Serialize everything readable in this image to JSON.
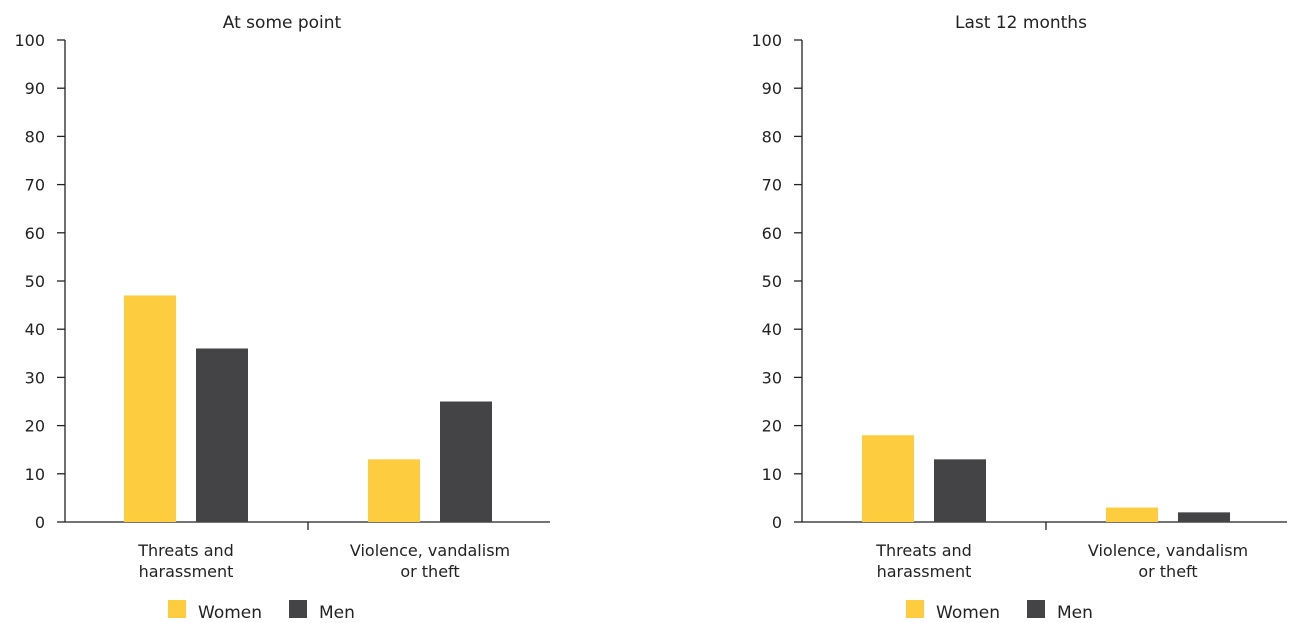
{
  "colors": {
    "women": "#fdcd3f",
    "men": "#444446",
    "axis": "#222222"
  },
  "chart_data": [
    {
      "type": "bar",
      "title": "At some point",
      "categories": [
        [
          "Threats and",
          "harassment"
        ],
        [
          "Violence, vandalism",
          "or theft"
        ]
      ],
      "series": [
        {
          "name": "Women",
          "values": [
            47,
            13
          ]
        },
        {
          "name": "Men",
          "values": [
            36,
            25
          ]
        }
      ],
      "ylim": [
        0,
        100
      ],
      "yticks": [
        0,
        10,
        20,
        30,
        40,
        50,
        60,
        70,
        80,
        90,
        100
      ],
      "grid": false,
      "legend": "bottom"
    },
    {
      "type": "bar",
      "title": "Last 12 months",
      "categories": [
        [
          "Threats and",
          "harassment"
        ],
        [
          "Violence, vandalism",
          "or theft"
        ]
      ],
      "series": [
        {
          "name": "Women",
          "values": [
            18,
            3
          ]
        },
        {
          "name": "Men",
          "values": [
            13,
            2
          ]
        }
      ],
      "ylim": [
        0,
        100
      ],
      "yticks": [
        0,
        10,
        20,
        30,
        40,
        50,
        60,
        70,
        80,
        90,
        100
      ],
      "grid": false,
      "legend": "bottom"
    }
  ]
}
